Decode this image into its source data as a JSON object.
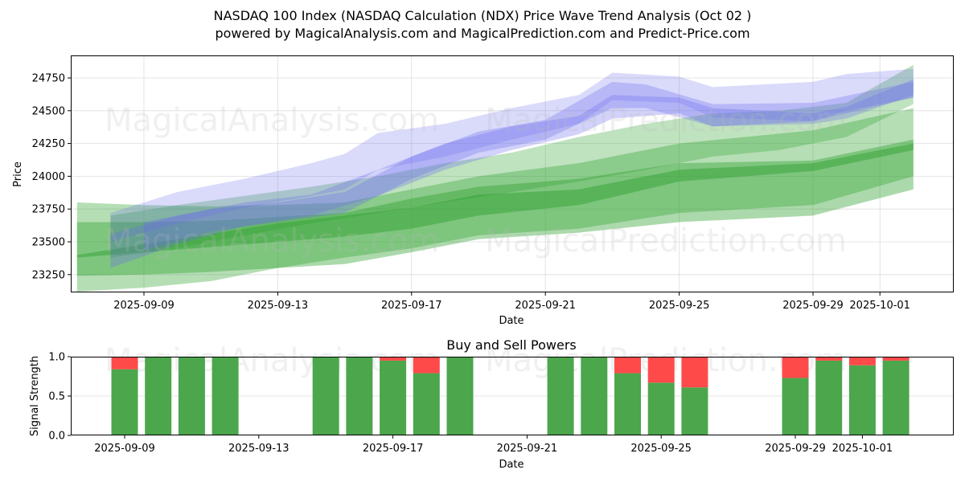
{
  "header": {
    "title": "NASDAQ 100 Index (NASDAQ Calculation (NDX) Price Wave Trend Analysis (Oct 02 )",
    "subtitle": "powered by MagicalAnalysis.com and MagicalPrediction.com and Predict-Price.com"
  },
  "watermarks": [
    "MagicalAnalysis.com",
    "MagicalPrediction.com"
  ],
  "colors": {
    "green_band": "#2ca02c",
    "blue_band": "#6b6bf0",
    "buy": "#4ca64c",
    "sell": "#ff4a4a",
    "grid": "#dddddd"
  },
  "chart_data": [
    {
      "type": "area",
      "title": "NASDAQ 100 Index (NASDAQ Calculation (NDX) Price Wave Trend Analysis (Oct 02 )",
      "xlabel": "Date",
      "ylabel": "Price",
      "x_tick_labels": [
        "2025-09-09",
        "2025-09-13",
        "2025-09-17",
        "2025-09-21",
        "2025-09-25",
        "2025-09-29",
        "2025-10-01"
      ],
      "x_range": [
        "2025-09-06",
        "2025-10-03"
      ],
      "y_ticks": [
        23250,
        23500,
        23750,
        24000,
        24250,
        24500,
        24750
      ],
      "ylim": [
        23130,
        24920
      ],
      "grid": true,
      "series": [
        {
          "name": "green-band-1",
          "color": "green",
          "opacity": 0.35,
          "x": [
            "2025-09-07",
            "2025-09-09",
            "2025-09-11",
            "2025-09-13",
            "2025-09-15",
            "2025-09-17",
            "2025-09-19",
            "2025-09-22",
            "2025-09-25",
            "2025-09-29",
            "2025-10-02"
          ],
          "upper": [
            23800,
            23780,
            23770,
            23780,
            23800,
            23900,
            24000,
            24100,
            24250,
            24350,
            24520
          ],
          "lower": [
            23120,
            23150,
            23200,
            23300,
            23380,
            23450,
            23550,
            23600,
            23720,
            23780,
            24000
          ]
        },
        {
          "name": "green-band-2",
          "color": "green",
          "opacity": 0.4,
          "x": [
            "2025-09-07",
            "2025-09-09",
            "2025-09-11",
            "2025-09-13",
            "2025-09-15",
            "2025-09-17",
            "2025-09-19",
            "2025-09-22",
            "2025-09-25",
            "2025-09-29",
            "2025-10-02"
          ],
          "upper": [
            23650,
            23650,
            23660,
            23690,
            23720,
            23830,
            23920,
            23980,
            24100,
            24120,
            24280
          ],
          "lower": [
            23240,
            23250,
            23270,
            23300,
            23330,
            23420,
            23520,
            23570,
            23650,
            23700,
            23900
          ]
        },
        {
          "name": "green-band-3",
          "color": "green",
          "opacity": 0.45,
          "x": [
            "2025-09-07",
            "2025-09-09",
            "2025-09-11",
            "2025-09-13",
            "2025-09-15",
            "2025-09-17",
            "2025-09-19",
            "2025-09-22",
            "2025-09-25",
            "2025-09-29",
            "2025-10-02"
          ],
          "upper": [
            23400,
            23480,
            23560,
            23640,
            23700,
            23760,
            23860,
            23900,
            24050,
            24100,
            24250
          ],
          "lower": [
            23380,
            23420,
            23460,
            23500,
            23540,
            23600,
            23700,
            23780,
            23960,
            24040,
            24200
          ]
        },
        {
          "name": "green-band-4",
          "color": "green",
          "opacity": 0.3,
          "x": [
            "2025-09-08",
            "2025-09-10",
            "2025-09-12",
            "2025-09-14",
            "2025-09-16",
            "2025-09-18",
            "2025-09-20",
            "2025-09-22",
            "2025-09-24",
            "2025-09-26",
            "2025-09-28",
            "2025-09-30",
            "2025-10-02"
          ],
          "upper": [
            23700,
            23780,
            23850,
            23920,
            24000,
            24100,
            24180,
            24300,
            24400,
            24480,
            24500,
            24560,
            24850
          ],
          "lower": [
            23380,
            23450,
            23550,
            23640,
            23720,
            23800,
            23880,
            23960,
            24050,
            24150,
            24200,
            24300,
            24550
          ]
        },
        {
          "name": "blue-band-1",
          "color": "blue",
          "opacity": 0.25,
          "x": [
            "2025-09-08",
            "2025-09-10",
            "2025-09-12",
            "2025-09-14",
            "2025-09-15",
            "2025-09-16",
            "2025-09-18",
            "2025-09-20",
            "2025-09-22",
            "2025-09-23",
            "2025-09-25",
            "2025-09-26",
            "2025-09-29",
            "2025-09-30",
            "2025-10-02"
          ],
          "upper": [
            23720,
            23880,
            23980,
            24100,
            24170,
            24330,
            24400,
            24520,
            24620,
            24790,
            24760,
            24680,
            24720,
            24780,
            24820
          ],
          "lower": [
            23500,
            23640,
            23760,
            23850,
            23900,
            24050,
            24150,
            24280,
            24400,
            24580,
            24560,
            24450,
            24420,
            24500,
            24600
          ]
        },
        {
          "name": "blue-band-2",
          "color": "blue",
          "opacity": 0.3,
          "x": [
            "2025-09-08",
            "2025-09-10",
            "2025-09-12",
            "2025-09-14",
            "2025-09-16",
            "2025-09-18",
            "2025-09-20",
            "2025-09-22",
            "2025-09-23",
            "2025-09-25",
            "2025-09-26",
            "2025-09-29",
            "2025-09-30",
            "2025-10-02"
          ],
          "upper": [
            23560,
            23700,
            23800,
            23860,
            24050,
            24250,
            24380,
            24460,
            24620,
            24600,
            24520,
            24480,
            24530,
            24740
          ],
          "lower": [
            23300,
            23480,
            23620,
            23700,
            23850,
            24050,
            24200,
            24320,
            24440,
            24480,
            24380,
            24400,
            24440,
            24620
          ]
        },
        {
          "name": "blue-band-3",
          "color": "blue",
          "opacity": 0.3,
          "x": [
            "2025-09-09",
            "2025-09-11",
            "2025-09-13",
            "2025-09-15",
            "2025-09-17",
            "2025-09-19",
            "2025-09-21",
            "2025-09-23",
            "2025-09-24",
            "2025-09-26",
            "2025-09-29",
            "2025-10-02"
          ],
          "upper": [
            23650,
            23750,
            23800,
            23880,
            24150,
            24340,
            24430,
            24720,
            24700,
            24550,
            24560,
            24720
          ],
          "lower": [
            23430,
            23580,
            23650,
            23720,
            23980,
            24180,
            24280,
            24520,
            24520,
            24380,
            24420,
            24600
          ]
        }
      ]
    },
    {
      "type": "bar",
      "title": "Buy and Sell Powers",
      "xlabel": "Date",
      "ylabel": "Signal Strength",
      "ylim": [
        0,
        1.0
      ],
      "y_ticks": [
        "0.0",
        "0.5",
        "1.0"
      ],
      "x_tick_labels": [
        "2025-09-09",
        "2025-09-13",
        "2025-09-17",
        "2025-09-21",
        "2025-09-25",
        "2025-09-29",
        "2025-10-01"
      ],
      "categories": [
        "2025-09-09",
        "2025-09-10",
        "2025-09-11",
        "2025-09-12",
        "2025-09-15",
        "2025-09-16",
        "2025-09-17",
        "2025-09-18",
        "2025-09-19",
        "2025-09-22",
        "2025-09-23",
        "2025-09-24",
        "2025-09-25",
        "2025-09-26",
        "2025-09-29",
        "2025-09-30",
        "2025-10-01",
        "2025-10-02"
      ],
      "series": [
        {
          "name": "Buy",
          "values": [
            0.84,
            1.0,
            1.0,
            1.0,
            1.0,
            1.0,
            0.95,
            0.79,
            1.0,
            1.0,
            1.0,
            0.79,
            0.67,
            0.61,
            0.73,
            0.95,
            0.89,
            0.95
          ]
        },
        {
          "name": "Sell",
          "values": [
            0.16,
            0.0,
            0.0,
            0.0,
            0.0,
            0.0,
            0.05,
            0.21,
            0.0,
            0.0,
            0.0,
            0.21,
            0.33,
            0.39,
            0.27,
            0.05,
            0.11,
            0.05
          ]
        }
      ]
    }
  ]
}
